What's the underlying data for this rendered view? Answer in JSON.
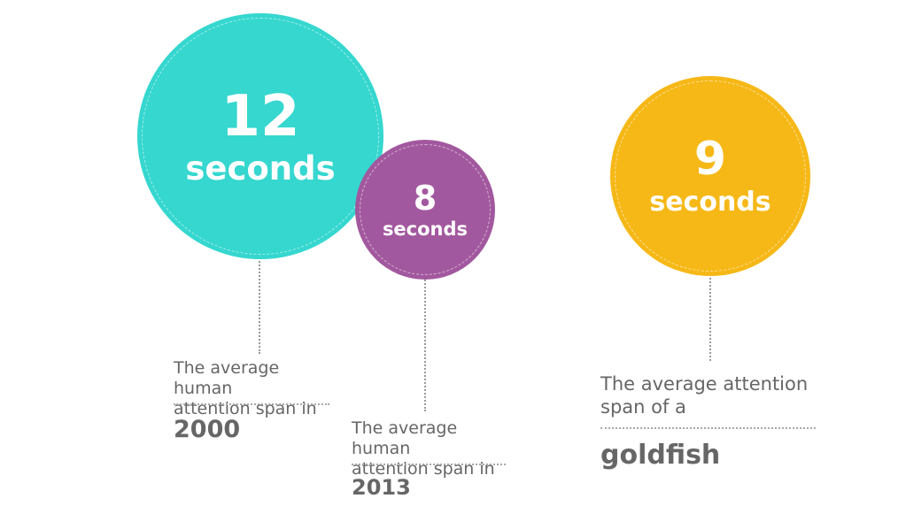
{
  "stats": [
    {
      "number": "12",
      "unit": "seconds",
      "caption_line1": "The average human",
      "caption_line2": "attention span in",
      "label": "2000",
      "color": "#35d7cf"
    },
    {
      "number": "8",
      "unit": "seconds",
      "caption_line1": "The average human",
      "caption_line2": "attention span in",
      "label": "2013",
      "color": "#a2589e"
    },
    {
      "number": "9",
      "unit": "seconds",
      "caption_line1": "The average attention",
      "caption_line2": "span of a",
      "label": "goldfish",
      "color": "#f6b817"
    }
  ]
}
